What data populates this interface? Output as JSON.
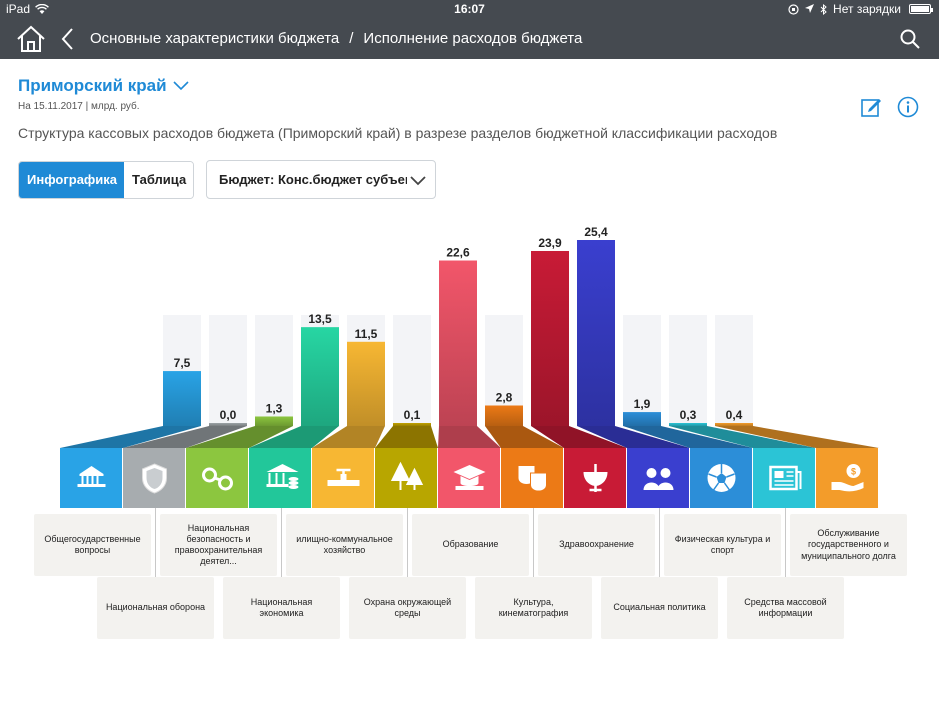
{
  "status_bar": {
    "device": "iPad",
    "time": "16:07",
    "charging": "Нет зарядки"
  },
  "header": {
    "breadcrumb": [
      "Основные характеристики бюджета",
      "/",
      "Исполнение расходов бюджета"
    ]
  },
  "region": {
    "name": "Приморский край",
    "date": "На 15.11.2017 | млрд. руб.",
    "subtitle": "Структура кассовых расходов бюджета (Приморский край) в разрезе разделов бюджетной классификации расходов"
  },
  "tabs": [
    {
      "label": "Инфографика",
      "active": true
    },
    {
      "label": "Таблица",
      "active": false
    }
  ],
  "budget_select": {
    "value": "Бюджет: Конс.бюджет субъекта"
  },
  "icons": {
    "home": "home-icon",
    "back": "chevron-left-icon",
    "search": "search-icon",
    "edit": "edit-icon",
    "info": "info-icon",
    "dropdown": "chevron-down-icon"
  },
  "chart_data": {
    "type": "bar",
    "categories": [
      "Общегосударственные вопросы",
      "Национальная оборона",
      "Национальная безопасность и правоохранительная деятел...",
      "Национальная экономика",
      "илищно-коммунальное хозяйство",
      "Охрана окружающей среды",
      "Образование",
      "Культура, кинематография",
      "Здравоохранение",
      "Социальная политика",
      "Физическая культура и спорт",
      "Средства массовой информации",
      "Обслуживание государственного и муниципального долга"
    ],
    "values": [
      7.5,
      0.0,
      1.3,
      13.5,
      11.5,
      0.1,
      22.6,
      2.8,
      23.9,
      25.4,
      1.9,
      0.3,
      0.4
    ],
    "value_labels": [
      "7,5",
      "0,0",
      "1,3",
      "13,5",
      "11,5",
      "0,1",
      "22,6",
      "2,8",
      "23,9",
      "25,4",
      "1,9",
      "0,3",
      "0,4"
    ],
    "colors": [
      "#29a3e6",
      "#9ca3a6",
      "#8cc63f",
      "#27d6a3",
      "#f7b733",
      "#c2a100",
      "#f2566a",
      "#ec7a16",
      "#c81b36",
      "#3a3fcf",
      "#2c8ed8",
      "#2bc4d6",
      "#f39c2a"
    ],
    "icon_tile_colors": [
      "#29a3e6",
      "#a7acaf",
      "#8cc63f",
      "#22c79a",
      "#f7b733",
      "#b8a600",
      "#f2566a",
      "#ec7a16",
      "#c81b36",
      "#3a3fcf",
      "#2c8ed8",
      "#2bc4d6",
      "#f39c2a"
    ],
    "icon_names": [
      "government-building-icon",
      "shield-icon",
      "handcuffs-icon",
      "bank-coins-icon",
      "pipe-valve-icon",
      "trees-icon",
      "graduation-cap-book-icon",
      "theatre-masks-icon",
      "medical-snake-icon",
      "people-group-icon",
      "soccer-ball-icon",
      "newspaper-icon",
      "money-hand-icon"
    ],
    "ylim": [
      0,
      25.4
    ]
  }
}
